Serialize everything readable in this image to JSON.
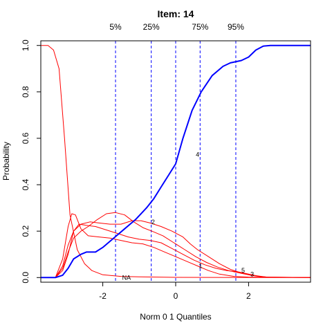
{
  "chart_data": {
    "type": "line",
    "title": "Item:  14",
    "xlabel": "Norm 0 1 Quantiles",
    "ylabel": "Probability",
    "xlim": [
      -3.7,
      3.7
    ],
    "ylim": [
      -0.02,
      1.02
    ],
    "x_ticks": [
      -2,
      0,
      2
    ],
    "x_tick_labels": [
      "-2",
      "0",
      "2"
    ],
    "y_ticks": [
      0.0,
      0.2,
      0.4,
      0.6,
      0.8,
      1.0
    ],
    "y_tick_labels": [
      "0.0",
      "0.2",
      "0.4",
      "0.6",
      "0.8",
      "1.0"
    ],
    "grid": false,
    "legend": "none",
    "colors": {
      "key_option": "#0000ff",
      "distractor": "#ff0000",
      "quantile_line": "#0000ff"
    },
    "quantile_lines": [
      {
        "label": "5%",
        "x": -1.65
      },
      {
        "label": "25%",
        "x": -0.67
      },
      {
        "label": "",
        "x": 0.0
      },
      {
        "label": "75%",
        "x": 0.67
      },
      {
        "label": "95%",
        "x": 1.65
      }
    ],
    "series": [
      {
        "label": "4",
        "role": "key",
        "label_at": [
          0.6,
          0.53
        ],
        "points": [
          [
            -3.7,
            0.0
          ],
          [
            -3.3,
            0.0
          ],
          [
            -3.1,
            0.01
          ],
          [
            -2.95,
            0.04
          ],
          [
            -2.8,
            0.08
          ],
          [
            -2.6,
            0.1
          ],
          [
            -2.45,
            0.11
          ],
          [
            -2.2,
            0.11
          ],
          [
            -2.0,
            0.13
          ],
          [
            -1.7,
            0.17
          ],
          [
            -1.4,
            0.21
          ],
          [
            -1.1,
            0.25
          ],
          [
            -0.8,
            0.3
          ],
          [
            -0.6,
            0.34
          ],
          [
            -0.4,
            0.39
          ],
          [
            -0.2,
            0.44
          ],
          [
            0.0,
            0.49
          ],
          [
            0.2,
            0.6
          ],
          [
            0.45,
            0.72
          ],
          [
            0.7,
            0.8
          ],
          [
            1.0,
            0.87
          ],
          [
            1.3,
            0.91
          ],
          [
            1.5,
            0.925
          ],
          [
            1.8,
            0.935
          ],
          [
            2.0,
            0.95
          ],
          [
            2.2,
            0.98
          ],
          [
            2.4,
            0.997
          ],
          [
            2.6,
            1.0
          ],
          [
            3.7,
            1.0
          ]
        ]
      },
      {
        "label": "NA",
        "role": "distractor",
        "label_at": [
          -1.35,
          0.0
        ],
        "points": [
          [
            -3.7,
            1.0
          ],
          [
            -3.5,
            1.0
          ],
          [
            -3.35,
            0.98
          ],
          [
            -3.2,
            0.9
          ],
          [
            -3.05,
            0.6
          ],
          [
            -2.9,
            0.27
          ],
          [
            -2.7,
            0.12
          ],
          [
            -2.5,
            0.06
          ],
          [
            -2.3,
            0.03
          ],
          [
            -2.0,
            0.012
          ],
          [
            -1.5,
            0.005
          ],
          [
            -1.0,
            0.003
          ],
          [
            0.0,
            0.001
          ],
          [
            3.7,
            0.0
          ]
        ]
      },
      {
        "label": "2",
        "role": "distractor",
        "label_at": [
          -0.62,
          0.24
        ],
        "points": [
          [
            -3.7,
            0.0
          ],
          [
            -3.3,
            0.0
          ],
          [
            -3.1,
            0.05
          ],
          [
            -2.95,
            0.14
          ],
          [
            -2.8,
            0.2
          ],
          [
            -2.6,
            0.23
          ],
          [
            -2.35,
            0.24
          ],
          [
            -2.1,
            0.235
          ],
          [
            -1.8,
            0.23
          ],
          [
            -1.5,
            0.23
          ],
          [
            -1.2,
            0.245
          ],
          [
            -0.95,
            0.245
          ],
          [
            -0.7,
            0.235
          ],
          [
            -0.4,
            0.22
          ],
          [
            -0.1,
            0.2
          ],
          [
            0.2,
            0.175
          ],
          [
            0.4,
            0.145
          ],
          [
            0.6,
            0.12
          ],
          [
            0.9,
            0.09
          ],
          [
            1.2,
            0.06
          ],
          [
            1.5,
            0.035
          ],
          [
            1.8,
            0.02
          ],
          [
            2.1,
            0.01
          ],
          [
            2.5,
            0.002
          ],
          [
            3.7,
            0.0
          ]
        ]
      },
      {
        "label": "1",
        "role": "distractor",
        "label_at": [
          0.68,
          0.05
        ],
        "points": [
          [
            -3.7,
            0.0
          ],
          [
            -3.3,
            0.0
          ],
          [
            -3.1,
            0.08
          ],
          [
            -2.95,
            0.22
          ],
          [
            -2.85,
            0.275
          ],
          [
            -2.75,
            0.27
          ],
          [
            -2.6,
            0.21
          ],
          [
            -2.4,
            0.18
          ],
          [
            -2.1,
            0.175
          ],
          [
            -1.8,
            0.17
          ],
          [
            -1.5,
            0.16
          ],
          [
            -1.2,
            0.15
          ],
          [
            -0.9,
            0.145
          ],
          [
            -0.6,
            0.13
          ],
          [
            -0.3,
            0.11
          ],
          [
            0.0,
            0.09
          ],
          [
            0.3,
            0.07
          ],
          [
            0.6,
            0.05
          ],
          [
            0.9,
            0.03
          ],
          [
            1.2,
            0.015
          ],
          [
            1.6,
            0.005
          ],
          [
            2.0,
            0.002
          ],
          [
            3.7,
            0.0
          ]
        ]
      },
      {
        "label": "5",
        "role": "distractor",
        "label_at": [
          1.85,
          0.03
        ],
        "points": [
          [
            -3.7,
            0.0
          ],
          [
            -3.3,
            0.0
          ],
          [
            -3.1,
            0.03
          ],
          [
            -2.95,
            0.1
          ],
          [
            -2.8,
            0.2
          ],
          [
            -2.65,
            0.23
          ],
          [
            -2.45,
            0.225
          ],
          [
            -2.2,
            0.22
          ],
          [
            -1.9,
            0.205
          ],
          [
            -1.6,
            0.19
          ],
          [
            -1.3,
            0.175
          ],
          [
            -1.0,
            0.165
          ],
          [
            -0.7,
            0.16
          ],
          [
            -0.4,
            0.15
          ],
          [
            -0.1,
            0.125
          ],
          [
            0.2,
            0.1
          ],
          [
            0.5,
            0.075
          ],
          [
            0.8,
            0.055
          ],
          [
            1.1,
            0.04
          ],
          [
            1.4,
            0.03
          ],
          [
            1.7,
            0.025
          ],
          [
            2.0,
            0.015
          ],
          [
            2.3,
            0.005
          ],
          [
            2.6,
            0.001
          ],
          [
            3.7,
            0.0
          ]
        ]
      },
      {
        "label": "3",
        "role": "distractor",
        "label_at": [
          2.1,
          0.015
        ],
        "points": [
          [
            -3.7,
            0.0
          ],
          [
            -3.3,
            0.0
          ],
          [
            -3.1,
            0.04
          ],
          [
            -2.95,
            0.11
          ],
          [
            -2.8,
            0.17
          ],
          [
            -2.6,
            0.2
          ],
          [
            -2.4,
            0.22
          ],
          [
            -2.15,
            0.25
          ],
          [
            -1.9,
            0.275
          ],
          [
            -1.65,
            0.28
          ],
          [
            -1.4,
            0.27
          ],
          [
            -1.15,
            0.24
          ],
          [
            -0.9,
            0.215
          ],
          [
            -0.65,
            0.2
          ],
          [
            -0.35,
            0.18
          ],
          [
            -0.05,
            0.15
          ],
          [
            0.25,
            0.12
          ],
          [
            0.55,
            0.09
          ],
          [
            0.85,
            0.065
          ],
          [
            1.15,
            0.045
          ],
          [
            1.45,
            0.03
          ],
          [
            1.75,
            0.02
          ],
          [
            2.05,
            0.01
          ],
          [
            2.4,
            0.002
          ],
          [
            3.7,
            0.0
          ]
        ]
      }
    ]
  }
}
